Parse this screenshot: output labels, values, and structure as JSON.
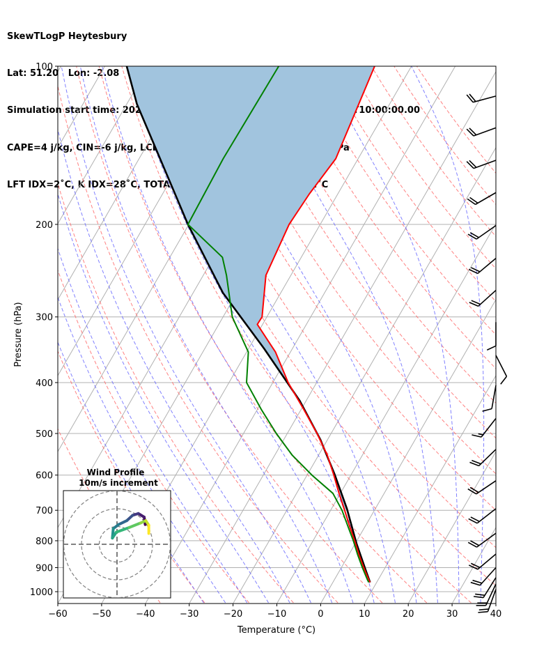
{
  "title": {
    "lines": [
      "SkewTLogP Heytesbury",
      "Lat: 51.20   Lon: -2.08",
      "Simulation start time: 2024-02-09_00:00:00, Valid time: 2024-02-09T10:00:00.00",
      "CAPE=4 j/kg, CIN=-6 j/kg, LCL=945 hPa, LFC=897 hPa, EQ=740 hPa",
      "LFT IDX=2˚C, K IDX=28˚C, TOTAL TOTS=52˚C, SHWTR_IDX=2˚C"
    ]
  },
  "chart_data": {
    "type": "line",
    "subtype": "skew-t log-p",
    "xlabel": "Temperature (°C)",
    "ylabel": "Pressure (hPa)",
    "xlim": [
      -60,
      40
    ],
    "ylim": [
      1050,
      100
    ],
    "x_ticks": [
      "−60",
      "−50",
      "−40",
      "−30",
      "−20",
      "−10",
      "0",
      "10",
      "20",
      "30",
      "40"
    ],
    "x_tick_values": [
      -60,
      -50,
      -40,
      -30,
      -20,
      -10,
      0,
      10,
      20,
      30,
      40
    ],
    "y_ticks": [
      "100",
      "200",
      "300",
      "400",
      "500",
      "600",
      "700",
      "800",
      "900",
      "1000"
    ],
    "y_tick_values": [
      100,
      200,
      300,
      400,
      500,
      600,
      700,
      800,
      900,
      1000
    ],
    "grid": true,
    "isotherm_step": 10,
    "dry_adiabat_T0_range": [
      -40,
      160,
      10
    ],
    "moist_adiabat_T0_range": [
      -30,
      40,
      5
    ],
    "colors": {
      "temperature": "#ff0000",
      "dewpoint": "#008000",
      "parcel": "#000000",
      "cape_fill": "#a1c4de",
      "dry_adiabat": "#ff6b6b",
      "moist_adiabat": "#6b6bff",
      "grid": "#b0b0b0"
    },
    "series": [
      {
        "name": "temperature",
        "points": [
          [
            100,
            -58.4
          ],
          [
            150,
            -55.1
          ],
          [
            175,
            -56.5
          ],
          [
            200,
            -57.1
          ],
          [
            250,
            -55.7
          ],
          [
            300,
            -51.1
          ],
          [
            310,
            -51.2
          ],
          [
            350,
            -43.4
          ],
          [
            400,
            -36.5
          ],
          [
            450,
            -29.4
          ],
          [
            500,
            -23.2
          ],
          [
            550,
            -18.0
          ],
          [
            600,
            -13.9
          ],
          [
            650,
            -10.3
          ],
          [
            700,
            -6.8
          ],
          [
            750,
            -3.6
          ],
          [
            800,
            -0.5
          ],
          [
            850,
            2.3
          ],
          [
            900,
            5.1
          ],
          [
            950,
            7.9
          ],
          [
            960,
            8.5
          ]
        ]
      },
      {
        "name": "dewpoint",
        "points": [
          [
            100,
            -80.3
          ],
          [
            150,
            -80.8
          ],
          [
            200,
            -80.2
          ],
          [
            231,
            -68.0
          ],
          [
            250,
            -64.7
          ],
          [
            300,
            -57.9
          ],
          [
            350,
            -49.6
          ],
          [
            400,
            -46.0
          ],
          [
            450,
            -39.1
          ],
          [
            500,
            -32.5
          ],
          [
            550,
            -26.0
          ],
          [
            600,
            -18.9
          ],
          [
            650,
            -11.7
          ],
          [
            700,
            -7.4
          ],
          [
            750,
            -4.0
          ],
          [
            800,
            -0.8
          ],
          [
            850,
            2.0
          ],
          [
            900,
            4.8
          ],
          [
            950,
            7.6
          ],
          [
            960,
            8.2
          ]
        ]
      },
      {
        "name": "parcel",
        "points": [
          [
            100,
            -115.0
          ],
          [
            118,
            -107.7
          ],
          [
            200,
            -80.2
          ],
          [
            270,
            -63.2
          ],
          [
            345,
            -46.4
          ],
          [
            433,
            -31.5
          ],
          [
            513,
            -21.7
          ],
          [
            597,
            -13.9
          ],
          [
            695,
            -6.5
          ],
          [
            810,
            0.3
          ],
          [
            914,
            6.1
          ],
          [
            960,
            8.5
          ]
        ]
      }
    ],
    "wind_barbs": [
      {
        "p": 114,
        "dir": 255,
        "kt": 20
      },
      {
        "p": 131,
        "dir": 250,
        "kt": 20
      },
      {
        "p": 151,
        "dir": 250,
        "kt": 20
      },
      {
        "p": 174,
        "dir": 240,
        "kt": 20
      },
      {
        "p": 201,
        "dir": 235,
        "kt": 20
      },
      {
        "p": 232,
        "dir": 230,
        "kt": 20
      },
      {
        "p": 267,
        "dir": 228,
        "kt": 20
      },
      {
        "p": 307,
        "dir": 180,
        "kt": 10
      },
      {
        "p": 355,
        "dir": 153,
        "kt": 10
      },
      {
        "p": 405,
        "dir": 190,
        "kt": 10
      },
      {
        "p": 468,
        "dir": 218,
        "kt": 15
      },
      {
        "p": 536,
        "dir": 226,
        "kt": 20
      },
      {
        "p": 615,
        "dir": 236,
        "kt": 20
      },
      {
        "p": 695,
        "dir": 232,
        "kt": 20
      },
      {
        "p": 774,
        "dir": 234,
        "kt": 20
      },
      {
        "p": 848,
        "dir": 230,
        "kt": 20
      },
      {
        "p": 900,
        "dir": 222,
        "kt": 20
      },
      {
        "p": 940,
        "dir": 212,
        "kt": 20
      },
      {
        "p": 967,
        "dir": 205,
        "kt": 20
      },
      {
        "p": 990,
        "dir": 200,
        "kt": 20
      }
    ],
    "hodograph": {
      "title": "Wind Profile",
      "subtitle": "10m/s increment",
      "ring_step_ms": 10,
      "rings": 3,
      "u_ms": [
        15.9,
        15.3,
        12.0,
        8.8,
        5.5,
        0.9,
        -2.1,
        -2.6,
        -0.4,
        6.8,
        13.3,
        16.2,
        17.9,
        17.9
      ],
      "v_ms": [
        11.1,
        15.3,
        17.3,
        16.3,
        13.3,
        11.1,
        8.8,
        3.5,
        6.8,
        9.4,
        12.0,
        13.3,
        10.7,
        6.1
      ],
      "colormap": "viridis"
    }
  }
}
